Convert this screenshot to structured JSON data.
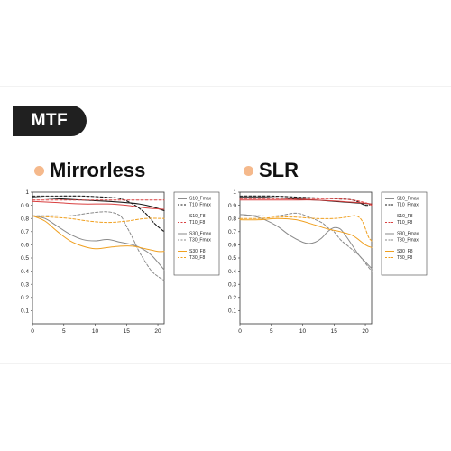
{
  "badge": {
    "label": "MTF"
  },
  "sections": [
    {
      "title": "Mirrorless"
    },
    {
      "title": "SLR"
    }
  ],
  "colors": {
    "black": "#1a1a1a",
    "red": "#d94040",
    "gray": "#8a8a8a",
    "orange": "#f0a020",
    "dot": "#f5b98c"
  },
  "chart_data": [
    {
      "type": "line",
      "title": "Mirrorless",
      "xlim": [
        0,
        21
      ],
      "ylim": [
        0,
        1
      ],
      "xticks": [
        0,
        5,
        10,
        15,
        20
      ],
      "yticks": [
        0.1,
        0.2,
        0.3,
        0.4,
        0.5,
        0.6,
        0.7,
        0.8,
        0.9,
        1
      ],
      "grid": false,
      "legend_position": "right",
      "series": [
        {
          "name": "S10_Fmax",
          "color": "#1a1a1a",
          "dash": false,
          "x": [
            0,
            4,
            8,
            12,
            15,
            17,
            19,
            21
          ],
          "y": [
            0.96,
            0.95,
            0.94,
            0.93,
            0.92,
            0.91,
            0.89,
            0.86
          ]
        },
        {
          "name": "T10_Fmax",
          "color": "#1a1a1a",
          "dash": true,
          "x": [
            0,
            4,
            8,
            12,
            14,
            16,
            18,
            19.5,
            21
          ],
          "y": [
            0.97,
            0.97,
            0.97,
            0.96,
            0.95,
            0.91,
            0.84,
            0.76,
            0.7
          ]
        },
        {
          "name": "S10_F8",
          "color": "#d94040",
          "dash": false,
          "x": [
            0,
            4,
            8,
            12,
            15,
            18,
            21
          ],
          "y": [
            0.93,
            0.92,
            0.91,
            0.91,
            0.9,
            0.88,
            0.87
          ]
        },
        {
          "name": "T10_F8",
          "color": "#d94040",
          "dash": true,
          "x": [
            0,
            5,
            10,
            15,
            21
          ],
          "y": [
            0.94,
            0.94,
            0.94,
            0.94,
            0.94
          ]
        },
        {
          "name": "S30_Fmax",
          "color": "#8a8a8a",
          "dash": false,
          "x": [
            0,
            2,
            4,
            6,
            8,
            10,
            12,
            14,
            16,
            17.5,
            19,
            21
          ],
          "y": [
            0.82,
            0.8,
            0.74,
            0.68,
            0.64,
            0.63,
            0.64,
            0.62,
            0.6,
            0.57,
            0.52,
            0.41
          ]
        },
        {
          "name": "T30_Fmax",
          "color": "#8a8a8a",
          "dash": true,
          "x": [
            0,
            3,
            6,
            9,
            12,
            14,
            15,
            16,
            17,
            18,
            19,
            20,
            21
          ],
          "y": [
            0.82,
            0.82,
            0.82,
            0.84,
            0.85,
            0.82,
            0.74,
            0.65,
            0.55,
            0.47,
            0.4,
            0.36,
            0.33
          ]
        },
        {
          "name": "S30_F8",
          "color": "#f0a020",
          "dash": false,
          "x": [
            0,
            2,
            4,
            6,
            8,
            10,
            12,
            14,
            16,
            18,
            20,
            21
          ],
          "y": [
            0.82,
            0.78,
            0.7,
            0.63,
            0.59,
            0.57,
            0.58,
            0.59,
            0.59,
            0.57,
            0.55,
            0.55
          ]
        },
        {
          "name": "T30_F8",
          "color": "#f0a020",
          "dash": true,
          "x": [
            0,
            3,
            6,
            9,
            12,
            15,
            18,
            21
          ],
          "y": [
            0.82,
            0.81,
            0.8,
            0.78,
            0.77,
            0.78,
            0.8,
            0.8
          ]
        }
      ]
    },
    {
      "type": "line",
      "title": "SLR",
      "xlim": [
        0,
        21
      ],
      "ylim": [
        0,
        1
      ],
      "xticks": [
        0,
        5,
        10,
        15,
        20
      ],
      "yticks": [
        0.1,
        0.2,
        0.3,
        0.4,
        0.5,
        0.6,
        0.7,
        0.8,
        0.9,
        1
      ],
      "grid": false,
      "legend_position": "right",
      "series": [
        {
          "name": "S10_Fmax",
          "color": "#1a1a1a",
          "dash": false,
          "x": [
            0,
            4,
            8,
            12,
            15,
            18,
            21
          ],
          "y": [
            0.96,
            0.96,
            0.95,
            0.94,
            0.93,
            0.92,
            0.91
          ]
        },
        {
          "name": "T10_Fmax",
          "color": "#1a1a1a",
          "dash": true,
          "x": [
            0,
            5,
            10,
            15,
            18,
            20,
            21
          ],
          "y": [
            0.97,
            0.97,
            0.96,
            0.95,
            0.94,
            0.9,
            0.91
          ]
        },
        {
          "name": "S10_F8",
          "color": "#d94040",
          "dash": false,
          "x": [
            0,
            4,
            8,
            12,
            16,
            19,
            21
          ],
          "y": [
            0.94,
            0.94,
            0.94,
            0.94,
            0.93,
            0.92,
            0.91
          ]
        },
        {
          "name": "T10_F8",
          "color": "#d94040",
          "dash": true,
          "x": [
            0,
            5,
            10,
            15,
            18,
            20,
            21
          ],
          "y": [
            0.95,
            0.95,
            0.95,
            0.95,
            0.94,
            0.92,
            0.9
          ]
        },
        {
          "name": "S30_Fmax",
          "color": "#8a8a8a",
          "dash": false,
          "x": [
            0,
            2,
            4,
            6,
            8,
            10,
            11,
            12,
            13,
            14,
            15,
            16,
            17,
            18,
            19,
            20,
            21
          ],
          "y": [
            0.83,
            0.82,
            0.79,
            0.74,
            0.67,
            0.62,
            0.61,
            0.62,
            0.65,
            0.7,
            0.73,
            0.72,
            0.66,
            0.59,
            0.52,
            0.47,
            0.42
          ]
        },
        {
          "name": "T30_Fmax",
          "color": "#8a8a8a",
          "dash": true,
          "x": [
            0,
            3,
            6,
            9,
            11,
            13,
            14,
            15,
            16,
            17,
            18,
            19,
            20,
            21
          ],
          "y": [
            0.83,
            0.82,
            0.82,
            0.84,
            0.81,
            0.77,
            0.73,
            0.7,
            0.64,
            0.6,
            0.56,
            0.52,
            0.46,
            0.4
          ]
        },
        {
          "name": "S30_F8",
          "color": "#f0a020",
          "dash": false,
          "x": [
            0,
            3,
            6,
            9,
            12,
            14,
            16,
            18,
            20,
            21
          ],
          "y": [
            0.79,
            0.79,
            0.8,
            0.79,
            0.75,
            0.72,
            0.7,
            0.67,
            0.6,
            0.58
          ]
        },
        {
          "name": "T30_F8",
          "color": "#f0a020",
          "dash": true,
          "x": [
            0,
            3,
            6,
            9,
            12,
            15,
            17,
            18.5,
            19.5,
            20.5,
            21
          ],
          "y": [
            0.8,
            0.8,
            0.81,
            0.81,
            0.8,
            0.8,
            0.81,
            0.82,
            0.78,
            0.66,
            0.63
          ]
        }
      ]
    }
  ]
}
